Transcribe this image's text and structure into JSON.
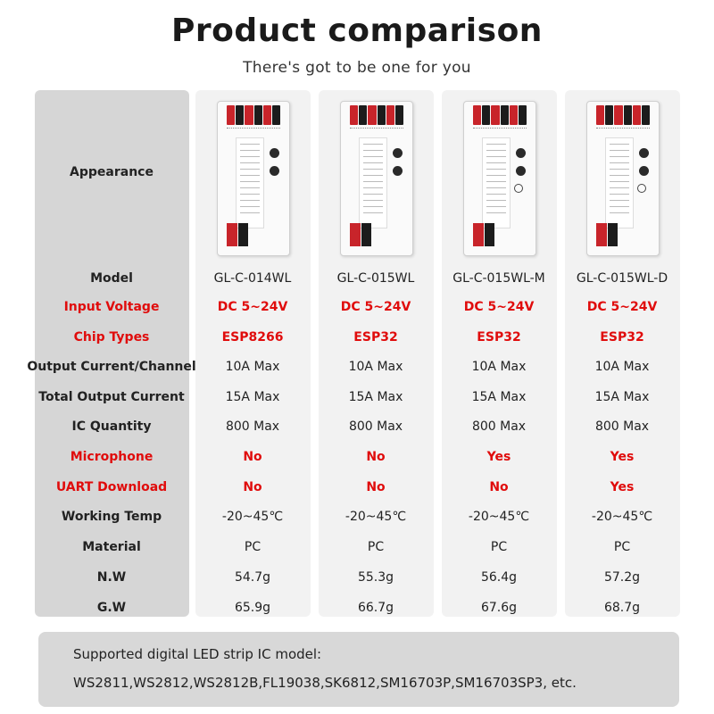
{
  "header": {
    "title": "Product comparison",
    "subtitle": "There's got to be one for you"
  },
  "row_labels": {
    "appearance": "Appearance",
    "model": "Model",
    "input_voltage": "Input Voltage",
    "chip_types": "Chip Types",
    "output_current": "Output Current/Channel",
    "total_current": "Total Output Current",
    "ic_quantity": "IC Quantity",
    "microphone": "Microphone",
    "uart": "UART Download",
    "temp": "Working Temp",
    "material": "Material",
    "nw": "N.W",
    "gw": "G.W"
  },
  "highlight_color": "#e00c0c",
  "products": [
    {
      "model": "GL-C-014WL",
      "input_voltage": "DC 5~24V",
      "chip_type": "ESP8266",
      "output_current": "10A Max",
      "total_current": "15A Max",
      "ic_quantity": "800 Max",
      "microphone": "No",
      "uart": "No",
      "temp": "-20~45℃",
      "material": "PC",
      "nw": "54.7g",
      "gw": "65.9g"
    },
    {
      "model": "GL-C-015WL",
      "input_voltage": "DC 5~24V",
      "chip_type": "ESP32",
      "output_current": "10A Max",
      "total_current": "15A Max",
      "ic_quantity": "800 Max",
      "microphone": "No",
      "uart": "No",
      "temp": "-20~45℃",
      "material": "PC",
      "nw": "55.3g",
      "gw": "66.7g"
    },
    {
      "model": "GL-C-015WL-M",
      "input_voltage": "DC 5~24V",
      "chip_type": "ESP32",
      "output_current": "10A Max",
      "total_current": "15A Max",
      "ic_quantity": "800 Max",
      "microphone": "Yes",
      "uart": "No",
      "temp": "-20~45℃",
      "material": "PC",
      "nw": "56.4g",
      "gw": "67.6g"
    },
    {
      "model": "GL-C-015WL-D",
      "input_voltage": "DC 5~24V",
      "chip_type": "ESP32",
      "output_current": "10A Max",
      "total_current": "15A Max",
      "ic_quantity": "800 Max",
      "microphone": "Yes",
      "uart": "Yes",
      "temp": "-20~45℃",
      "material": "PC",
      "nw": "57.2g",
      "gw": "68.7g"
    }
  ],
  "footer": {
    "title": "Supported digital LED strip IC model:",
    "models": "WS2811,WS2812,WS2812B,FL19038,SK6812,SM16703P,SM16703SP3, etc."
  }
}
